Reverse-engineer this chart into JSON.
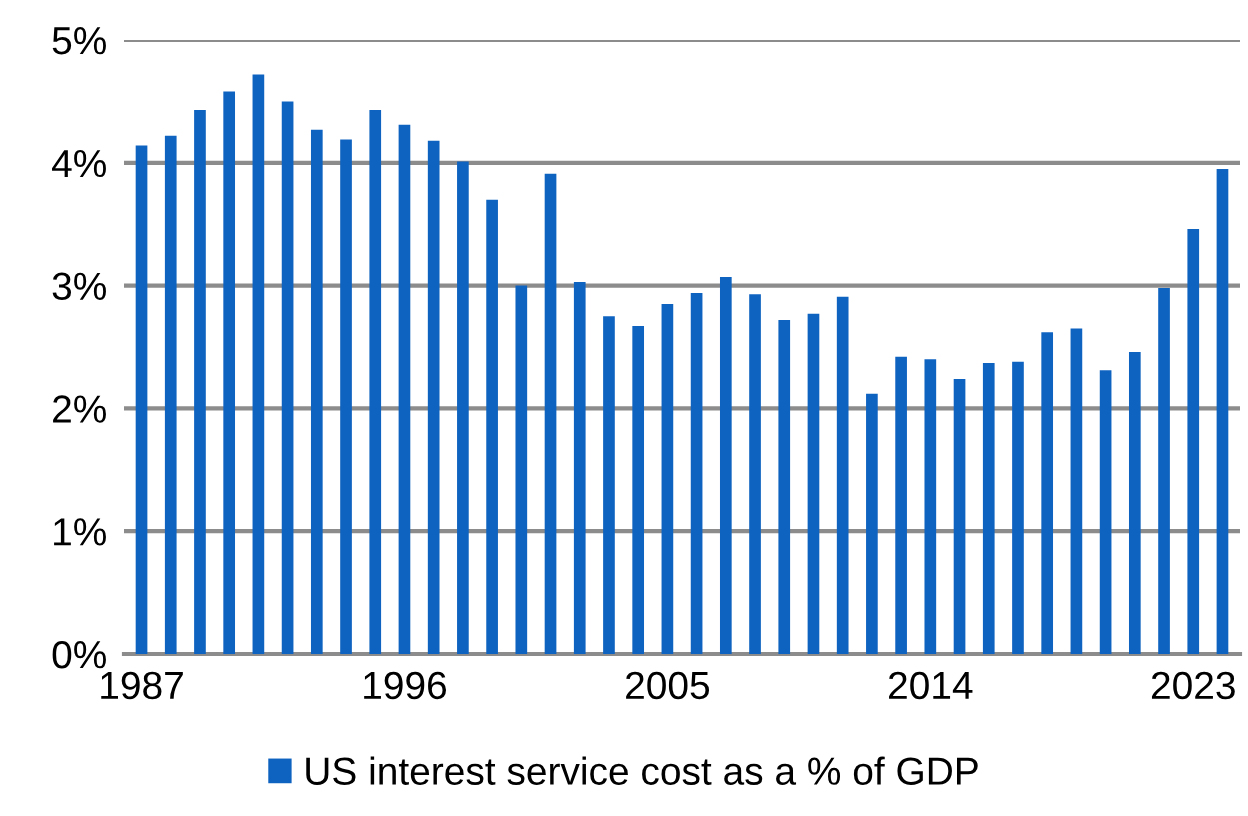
{
  "chart_data": {
    "type": "bar",
    "categories": [
      "1987",
      null,
      null,
      null,
      null,
      null,
      null,
      null,
      null,
      "1996",
      null,
      null,
      null,
      null,
      null,
      null,
      null,
      null,
      "2005",
      null,
      null,
      null,
      null,
      null,
      null,
      null,
      null,
      "2014",
      null,
      null,
      null,
      null,
      null,
      null,
      null,
      null,
      "2023",
      null
    ],
    "series": [
      {
        "name": "US interest service cost as a % of GDP",
        "color": "#0f63c0",
        "values": [
          4.14,
          4.22,
          4.43,
          4.58,
          4.72,
          4.5,
          4.27,
          4.19,
          4.43,
          4.31,
          4.18,
          4.01,
          3.7,
          3.0,
          3.91,
          3.03,
          2.75,
          2.67,
          2.85,
          2.94,
          3.07,
          2.93,
          2.72,
          2.77,
          2.91,
          2.12,
          2.42,
          2.4,
          2.24,
          2.37,
          2.38,
          2.62,
          2.65,
          2.31,
          2.46,
          2.98,
          3.46,
          3.95
        ]
      }
    ],
    "ylim": [
      0,
      5
    ],
    "yticks": [
      {
        "value": 0,
        "label": "0%"
      },
      {
        "value": 1,
        "label": "1%"
      },
      {
        "value": 2,
        "label": "2%"
      },
      {
        "value": 3,
        "label": "3%"
      },
      {
        "value": 4,
        "label": "4%"
      },
      {
        "value": 5,
        "label": "5%"
      }
    ],
    "grid": "y",
    "legend": "bottom"
  }
}
